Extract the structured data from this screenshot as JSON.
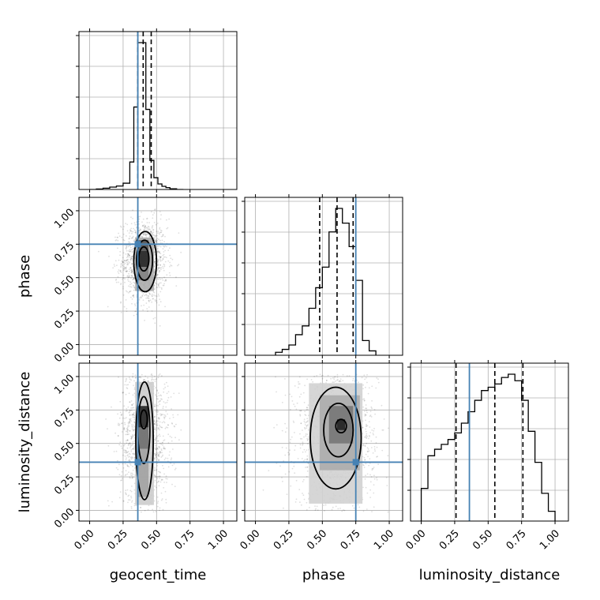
{
  "chart_data": {
    "type": "corner",
    "parameters": [
      "geocent_time",
      "phase",
      "luminosity_distance"
    ],
    "axis_labels": {
      "geocent_time": "geocent_time",
      "phase": "phase",
      "luminosity_distance": "luminosity_distance"
    },
    "tick_labels": [
      "0.00",
      "0.25",
      "0.50",
      "0.75",
      "1.00"
    ],
    "truths": {
      "geocent_time": 0.36,
      "phase": 0.75,
      "luminosity_distance": 0.36
    },
    "truth_color": "#4682b4",
    "grid": true,
    "marginals": [
      {
        "parameter": "geocent_time",
        "xlim": [
          -0.08,
          1.1
        ],
        "bin_edges": [
          0.0,
          0.05,
          0.1,
          0.15,
          0.2,
          0.25,
          0.3,
          0.33,
          0.36,
          0.39,
          0.42,
          0.45,
          0.48,
          0.51,
          0.54,
          0.57,
          0.6,
          0.65,
          0.7
        ],
        "counts": [
          0.0,
          0.003,
          0.008,
          0.015,
          0.022,
          0.04,
          0.175,
          0.525,
          0.935,
          0.935,
          0.51,
          0.185,
          0.075,
          0.035,
          0.02,
          0.012,
          0.004,
          0.0
        ],
        "quantiles": [
          0.36,
          0.4,
          0.46
        ]
      },
      {
        "parameter": "phase",
        "xlim": [
          -0.08,
          1.1
        ],
        "bin_edges": [
          0.15,
          0.2,
          0.25,
          0.3,
          0.35,
          0.4,
          0.45,
          0.5,
          0.55,
          0.6,
          0.65,
          0.7,
          0.75,
          0.8,
          0.85,
          0.9
        ],
        "counts": [
          0.02,
          0.04,
          0.07,
          0.14,
          0.2,
          0.32,
          0.46,
          0.6,
          0.84,
          1.0,
          0.9,
          0.74,
          0.51,
          0.1,
          0.03
        ],
        "quantiles": [
          0.48,
          0.61,
          0.73
        ]
      },
      {
        "parameter": "luminosity_distance",
        "xlim": [
          -0.08,
          1.1
        ],
        "bin_edges": [
          0.0,
          0.05,
          0.1,
          0.15,
          0.2,
          0.25,
          0.3,
          0.35,
          0.4,
          0.45,
          0.5,
          0.55,
          0.6,
          0.65,
          0.7,
          0.75,
          0.8,
          0.85,
          0.9,
          0.95,
          1.0
        ],
        "counts": [
          0.2,
          0.4,
          0.44,
          0.47,
          0.5,
          0.54,
          0.6,
          0.67,
          0.74,
          0.8,
          0.82,
          0.84,
          0.88,
          0.9,
          0.86,
          0.74,
          0.55,
          0.36,
          0.17,
          0.06
        ],
        "quantiles": [
          0.26,
          0.55,
          0.76
        ]
      }
    ],
    "joint_panels": [
      {
        "x": "geocent_time",
        "y": "phase",
        "xlim": [
          -0.08,
          1.1
        ],
        "ylim": [
          -0.08,
          1.1
        ],
        "scatter": {
          "center": [
            0.41,
            0.62
          ],
          "spread": [
            0.085,
            0.16
          ],
          "n": 1300
        },
        "density_cells": [
          {
            "x": [
              0.36,
              0.44
            ],
            "y": [
              0.58,
              0.7
            ],
            "level": 0.95
          },
          {
            "x": [
              0.36,
              0.44
            ],
            "y": [
              0.7,
              0.78
            ],
            "level": 0.7
          },
          {
            "x": [
              0.36,
              0.44
            ],
            "y": [
              0.48,
              0.58
            ],
            "level": 0.5
          },
          {
            "x": [
              0.34,
              0.48
            ],
            "y": [
              0.4,
              0.8
            ],
            "level": 0.3
          }
        ],
        "contours": [
          {
            "center": [
              0.405,
              0.64
            ],
            "radii": [
              0.038,
              0.09
            ]
          },
          {
            "center": [
              0.41,
              0.63
            ],
            "radii": [
              0.06,
              0.15
            ]
          },
          {
            "center": [
              0.415,
              0.62
            ],
            "radii": [
              0.085,
              0.225
            ]
          }
        ]
      },
      {
        "x": "geocent_time",
        "y": "luminosity_distance",
        "xlim": [
          -0.08,
          1.1
        ],
        "ylim": [
          -0.08,
          1.1
        ],
        "scatter": {
          "center": [
            0.41,
            0.55
          ],
          "spread": [
            0.09,
            0.28
          ],
          "n": 1500
        },
        "density_cells": [
          {
            "x": [
              0.36,
              0.44
            ],
            "y": [
              0.62,
              0.78
            ],
            "level": 0.95
          },
          {
            "x": [
              0.36,
              0.44
            ],
            "y": [
              0.46,
              0.62
            ],
            "level": 0.6
          },
          {
            "x": [
              0.36,
              0.44
            ],
            "y": [
              0.1,
              0.46
            ],
            "level": 0.35
          },
          {
            "x": [
              0.34,
              0.48
            ],
            "y": [
              0.04,
              0.96
            ],
            "level": 0.15
          }
        ],
        "contours": [
          {
            "center": [
              0.405,
              0.68
            ],
            "radii": [
              0.025,
              0.07
            ]
          },
          {
            "center": [
              0.405,
              0.6
            ],
            "radii": [
              0.045,
              0.25
            ]
          },
          {
            "center": [
              0.41,
              0.52
            ],
            "radii": [
              0.065,
              0.44
            ]
          }
        ]
      },
      {
        "x": "phase",
        "y": "luminosity_distance",
        "xlim": [
          -0.08,
          1.1
        ],
        "ylim": [
          -0.08,
          1.1
        ],
        "scatter": {
          "center": [
            0.6,
            0.55
          ],
          "spread": [
            0.15,
            0.27
          ],
          "n": 1700
        },
        "density_cells": [
          {
            "x": [
              0.61,
              0.67
            ],
            "y": [
              0.6,
              0.68
            ],
            "level": 0.95
          },
          {
            "x": [
              0.55,
              0.73
            ],
            "y": [
              0.5,
              0.78
            ],
            "level": 0.55
          },
          {
            "x": [
              0.48,
              0.78
            ],
            "y": [
              0.3,
              0.86
            ],
            "level": 0.3
          },
          {
            "x": [
              0.4,
              0.8
            ],
            "y": [
              0.05,
              0.95
            ],
            "level": 0.12
          }
        ],
        "contours": [
          {
            "center": [
              0.64,
              0.63
            ],
            "radii": [
              0.04,
              0.05
            ]
          },
          {
            "center": [
              0.62,
              0.6
            ],
            "radii": [
              0.11,
              0.2
            ]
          },
          {
            "center": [
              0.6,
              0.54
            ],
            "radii": [
              0.19,
              0.38
            ]
          }
        ]
      }
    ]
  }
}
